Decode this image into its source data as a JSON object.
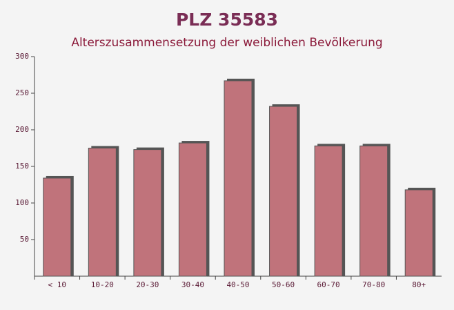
{
  "chart_data": {
    "type": "bar",
    "title": "PLZ 35583",
    "subtitle": "Alterszusammensetzung der weiblichen Bevölkerung",
    "categories": [
      "< 10",
      "10-20",
      "20-30",
      "30-40",
      "40-50",
      "50-60",
      "60-70",
      "70-80",
      "80+"
    ],
    "values": [
      134,
      175,
      173,
      182,
      267,
      232,
      178,
      178,
      118
    ],
    "color": "#c0737b",
    "ylim": [
      0,
      300
    ],
    "yticks": [
      50,
      100,
      150,
      200,
      250,
      300
    ]
  }
}
